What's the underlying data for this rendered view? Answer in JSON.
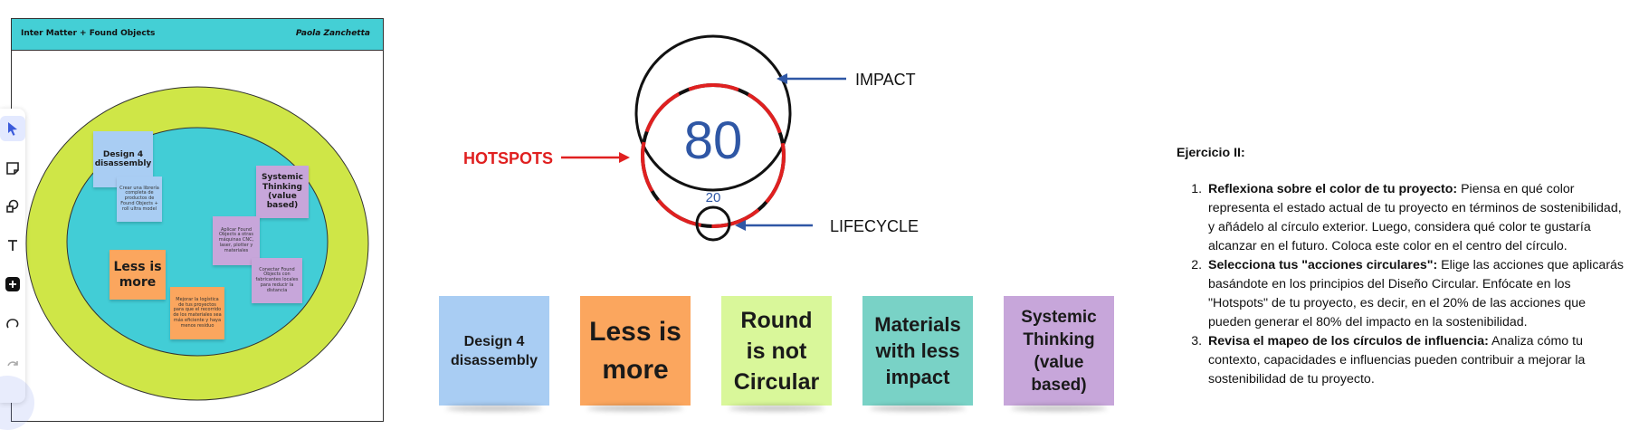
{
  "board": {
    "title": "Inter Matter + Found Objects",
    "author": "Paola Zanchetta",
    "notes": {
      "design": "Design 4 disassembly",
      "design_sub": "Crear una librería completa de productos de Found Objects + roll ultra model",
      "systemic": "Systemic Thinking (value based)",
      "fab": "Aplicar Found Objects a otras máquinas CNC, laser, plotter y materiales",
      "systemic_sub": "Conectar Found Objects con fabricantes locales para reducir la distancia",
      "less": "Less is more",
      "less_sub": "Mejorar la logística de tus proyectos para que el recorrido de los materiales sea más eficiente y haya menos residuo"
    }
  },
  "toolbar": {
    "tools": [
      {
        "name": "select-tool",
        "icon": "cursor-icon"
      },
      {
        "name": "sticky-note-tool",
        "icon": "sticky-note-icon"
      },
      {
        "name": "shapes-tool",
        "icon": "shapes-icon"
      },
      {
        "name": "text-tool",
        "icon": "text-icon"
      },
      {
        "name": "add-tool",
        "icon": "plus-icon"
      },
      {
        "name": "comment-tool",
        "icon": "comment-icon"
      },
      {
        "name": "redo-tool",
        "icon": "redo-icon"
      }
    ]
  },
  "diagram": {
    "impact_label": "IMPACT",
    "hotspots_label": "HOTSPOTS",
    "lifecycle_label": "LIFECYCLE",
    "big_number": "80",
    "small_number": "20",
    "colors": {
      "circle": "#111111",
      "hotspot": "#e02020",
      "number": "#2f57a5",
      "arrow": "#2f57a5"
    }
  },
  "stickies": [
    {
      "label": "Design 4 disassembly",
      "color": "#a9cdf3"
    },
    {
      "label": "Less is more",
      "color": "#fba65e"
    },
    {
      "label": "Round is not Circular",
      "color": "#d9f79a"
    },
    {
      "label": "Materials with less impact",
      "color": "#79d2c6"
    },
    {
      "label": "Systemic Thinking (value based)",
      "color": "#c7a6da"
    }
  ],
  "exercise": {
    "title": "Ejercicio II:",
    "items": [
      {
        "bold": "Reflexiona sobre el color de tu proyecto:",
        "text": " Piensa en qué color representa el estado actual de tu proyecto en términos de sostenibilidad, y añádelo al círculo exterior. Luego, considera qué color te gustaría alcanzar en el futuro. Coloca este color en el centro del círculo."
      },
      {
        "bold": "Selecciona tus \"acciones circulares\":",
        "text": " Elige las acciones que aplicarás basándote en los principios del Diseño Circular. Enfócate en los \"Hotspots\" de tu proyecto, es decir, en el 20% de las acciones que pueden generar el 80% del impacto en la sostenibilidad."
      },
      {
        "bold": "Revisa el mapeo de los círculos de influencia:",
        "text": " Analiza cómo tu contexto, capacidades e influencias pueden contribuir a mejorar la sostenibilidad de tu proyecto."
      }
    ]
  }
}
